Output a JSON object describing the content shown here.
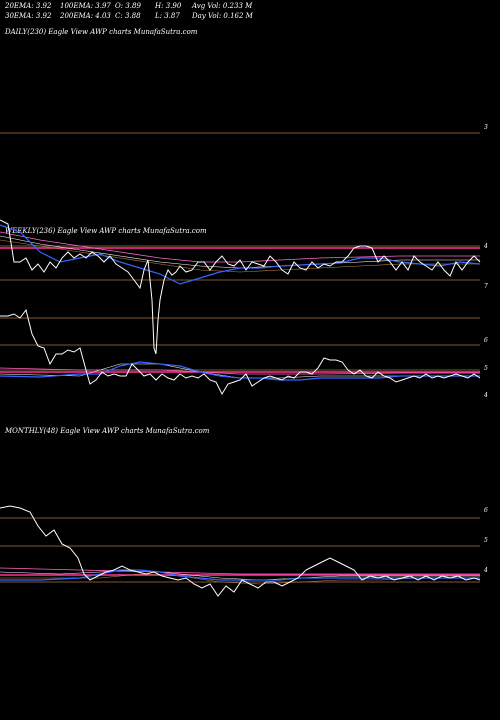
{
  "stats": {
    "row1": [
      "20EMA: 3.92",
      "100EMA: 3.97",
      "O: 3.89",
      "H: 3.90",
      "Avg Vol: 0.233 M"
    ],
    "row2": [
      "30EMA: 3.92",
      "200EMA: 4.03",
      "C: 3.88",
      "L: 3.87",
      "Day Vol: 0.162 M"
    ]
  },
  "chart_data": [
    {
      "type": "line",
      "title": "DAILY(230) Eagle   View  AWP charts MunafaSutra.com",
      "ticks": [
        "3"
      ]
    },
    {
      "type": "line",
      "title": "WEEKLY(236) Eagle   View  AWP charts MunafaSutra.com",
      "ticks": [
        "4",
        "7",
        "6",
        "5",
        "4"
      ]
    },
    {
      "type": "line",
      "title": "MONTHLY(48) Eagle   View  AWP charts MunafaSutra.com",
      "ticks": [
        "6",
        "5",
        "4"
      ]
    }
  ]
}
